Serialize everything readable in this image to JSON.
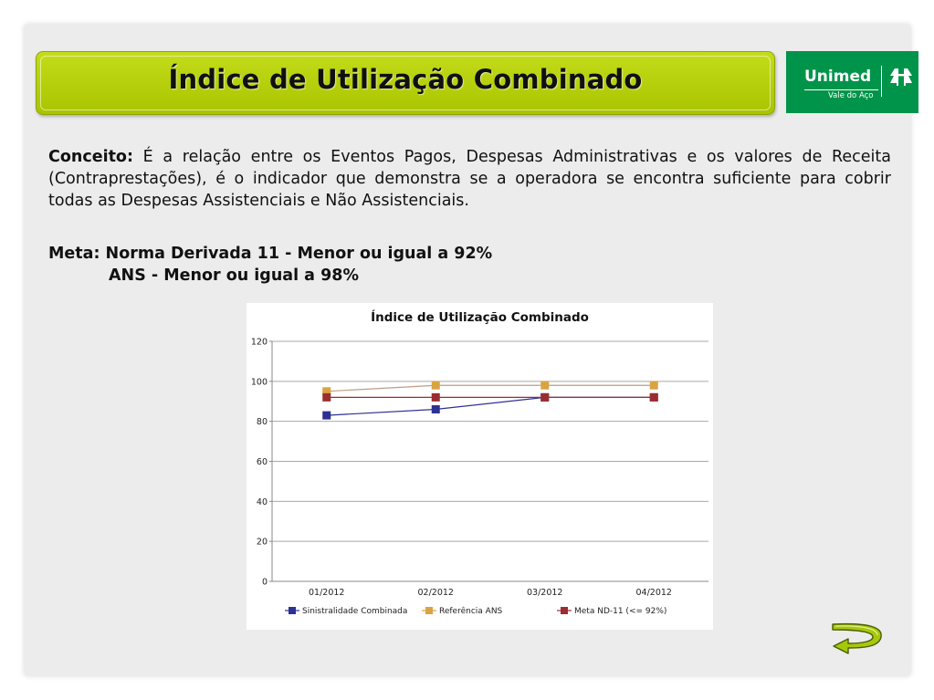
{
  "header": {
    "title": "Índice de Utilização Combinado",
    "logo_name": "Unimed",
    "logo_subtitle": "Vale do Aço"
  },
  "concept": {
    "label": "Conceito:",
    "text": " É a relação entre os Eventos Pagos, Despesas Administrativas e os valores de Receita (Contraprestações), é o indicador que demonstra se a operadora se encontra suficiente para cobrir todas as Despesas Assistenciais e Não Assistenciais."
  },
  "meta": {
    "line1": "Meta: Norma Derivada 11 - Menor ou igual a 92%",
    "line2": "ANS  - Menor ou igual a 98%"
  },
  "colors": {
    "title_bar": "#b4cf0c",
    "logo_green": "#00944a",
    "series": [
      "#2e3192",
      "#d9a441",
      "#9b2d30"
    ]
  },
  "icons": {
    "return": "curved-return-arrow-icon"
  },
  "chart_data": {
    "type": "line",
    "title": "Índice de Utilização Combinado",
    "categories": [
      "01/2012",
      "02/2012",
      "03/2012",
      "04/2012"
    ],
    "series": [
      {
        "name": "Sinistralidade Combinada",
        "values": [
          83,
          86,
          92,
          92
        ]
      },
      {
        "name": "Referência ANS",
        "values": [
          95,
          98,
          98,
          98
        ]
      },
      {
        "name": "Meta ND-11 (<= 92%)",
        "values": [
          92,
          92,
          92,
          92
        ]
      }
    ],
    "ylim": [
      0,
      120
    ],
    "yticks": [
      0,
      20,
      40,
      60,
      80,
      100,
      120
    ],
    "grid": true,
    "legend": "bottom"
  }
}
